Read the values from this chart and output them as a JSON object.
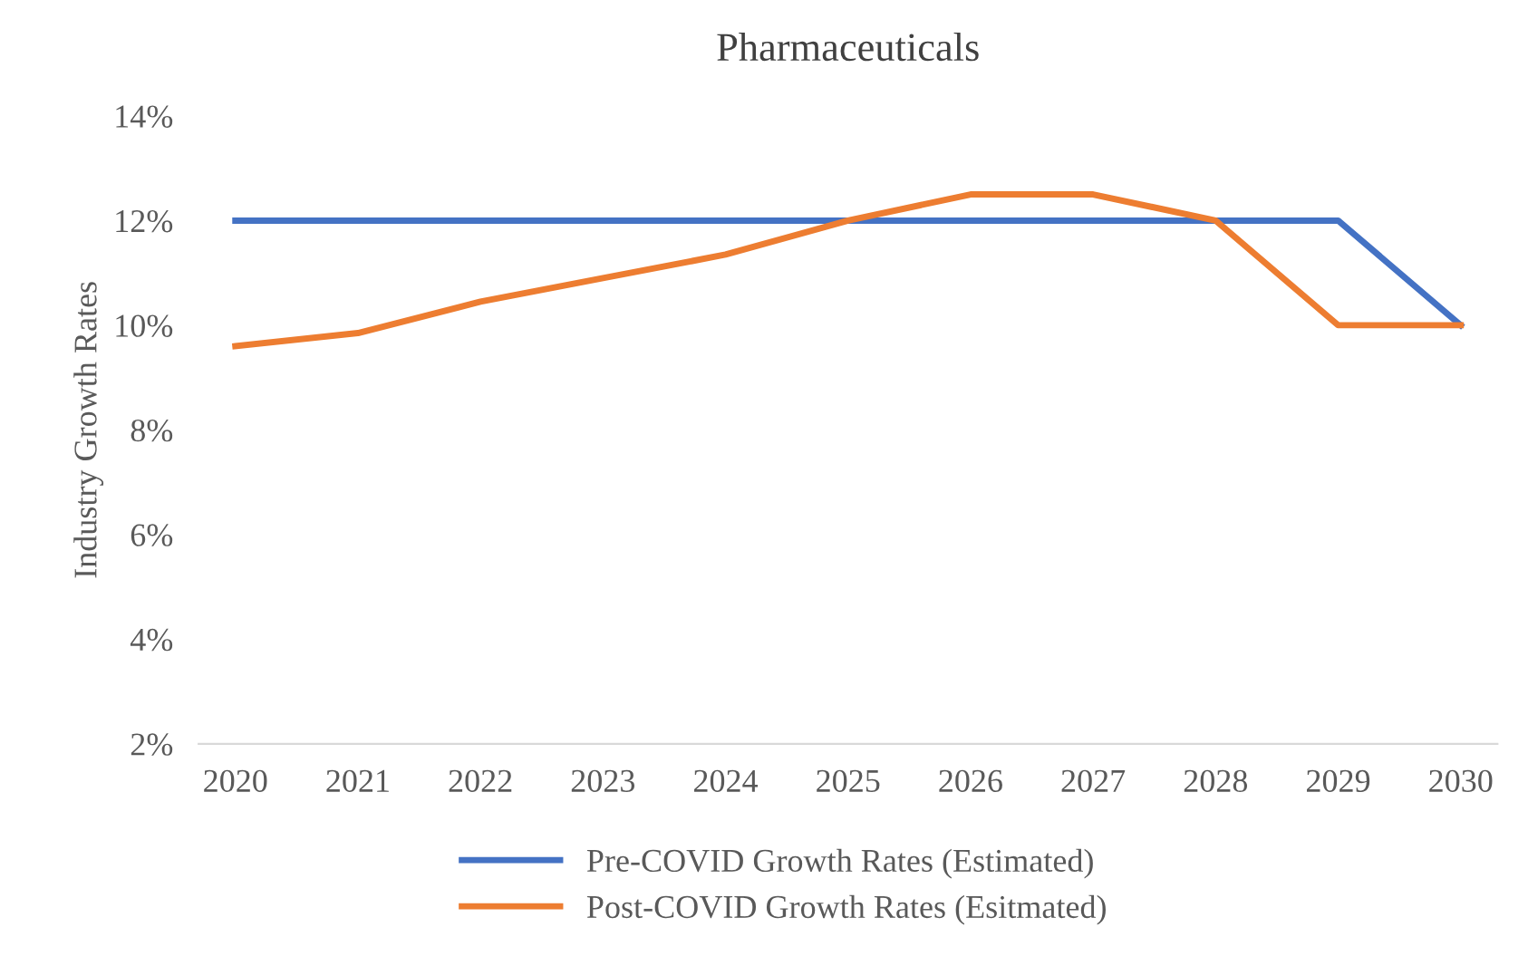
{
  "chart_data": {
    "type": "line",
    "title": "Pharmaceuticals",
    "ylabel": "Industry Growth Rates",
    "categories": [
      "2020",
      "2021",
      "2022",
      "2023",
      "2024",
      "2025",
      "2026",
      "2027",
      "2028",
      "2029",
      "2030"
    ],
    "series": [
      {
        "name": "Pre-COVID Growth Rates (Estimated)",
        "color": "#4472c4",
        "values": [
          12,
          12,
          12,
          12,
          12,
          12,
          12,
          12,
          12,
          12,
          10
        ]
      },
      {
        "name": "Post-COVID Growth Rates (Esitmated)",
        "color": "#ed7d31",
        "values": [
          9.6,
          9.85,
          10.45,
          10.9,
          11.35,
          12,
          12.5,
          12.5,
          12,
          10,
          10
        ]
      }
    ],
    "ylim": [
      2,
      14
    ],
    "yticks": [
      {
        "value": 2,
        "label": "2%"
      },
      {
        "value": 4,
        "label": "4%"
      },
      {
        "value": 6,
        "label": "6%"
      },
      {
        "value": 8,
        "label": "8%"
      },
      {
        "value": 10,
        "label": "10%"
      },
      {
        "value": 12,
        "label": "12%"
      },
      {
        "value": 14,
        "label": "14%"
      }
    ],
    "grid": false,
    "legend": "bottom",
    "marker": "none",
    "line_style": "solid"
  }
}
